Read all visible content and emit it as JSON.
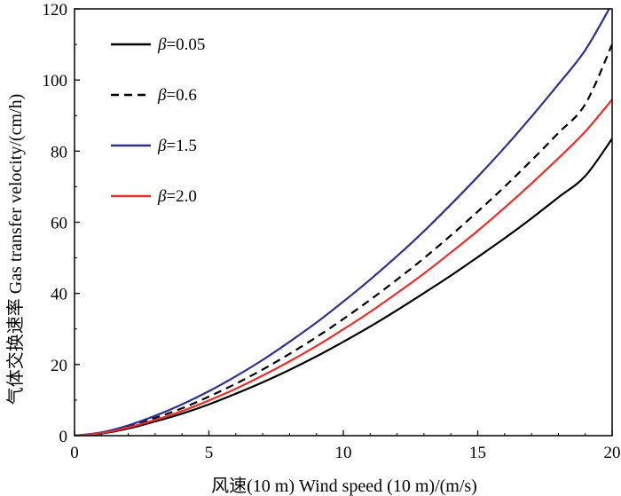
{
  "chart_data": {
    "type": "line",
    "title": "",
    "xlabel": "风速(10 m) Wind speed (10 m)/(m/s)",
    "ylabel": "气体交换速率 Gas transfer velocity/(cm/h)",
    "xlim": [
      0,
      20
    ],
    "ylim": [
      0,
      120
    ],
    "x_ticks": [
      "0",
      "5",
      "10",
      "15",
      "20"
    ],
    "y_ticks": [
      "0",
      "20",
      "40",
      "60",
      "80",
      "100",
      "120"
    ],
    "legend_position": "top-left",
    "x": [
      0,
      1,
      2,
      3,
      4,
      5,
      6,
      7,
      8,
      9,
      10,
      11,
      12,
      13,
      14,
      15,
      16,
      17,
      18,
      19,
      20
    ],
    "series": [
      {
        "name": "β=0.05",
        "legend_symbol": "β",
        "legend_value": "=0.05",
        "color": "#000000",
        "dash": "solid",
        "values": [
          0,
          0.6,
          2.0,
          4.0,
          6.2,
          8.8,
          11.8,
          15.0,
          18.5,
          22.3,
          26.4,
          30.7,
          35.3,
          40.1,
          45.0,
          50.2,
          55.5,
          61.1,
          67.0,
          73.0,
          83.5
        ]
      },
      {
        "name": "β=0.6",
        "legend_symbol": "β",
        "legend_value": "=0.6",
        "color": "#000000",
        "dash": "dashed",
        "values": [
          0,
          0.8,
          2.6,
          5.0,
          7.7,
          11.0,
          14.6,
          18.6,
          23.0,
          27.7,
          32.8,
          38.2,
          43.9,
          49.9,
          56.3,
          63.0,
          70.0,
          77.4,
          85.1,
          93.2,
          110.0
        ]
      },
      {
        "name": "β=1.5",
        "legend_symbol": "β",
        "legend_value": "=1.5",
        "color": "#2e3192",
        "dash": "solid",
        "values": [
          0,
          0.9,
          2.9,
          5.6,
          8.8,
          12.5,
          16.7,
          21.3,
          26.4,
          31.8,
          37.7,
          43.9,
          50.5,
          57.5,
          65.0,
          72.8,
          81.0,
          89.7,
          98.8,
          108.4,
          121.5
        ]
      },
      {
        "name": "β=2.0",
        "legend_symbol": "β",
        "legend_value": "=2.0",
        "color": "#e8302a",
        "dash": "solid",
        "values": [
          0,
          0.7,
          2.3,
          4.4,
          6.9,
          9.9,
          13.2,
          16.9,
          20.9,
          25.2,
          29.9,
          34.8,
          40.1,
          45.6,
          51.5,
          57.6,
          64.1,
          70.9,
          78.0,
          85.5,
          94.5
        ]
      }
    ]
  }
}
